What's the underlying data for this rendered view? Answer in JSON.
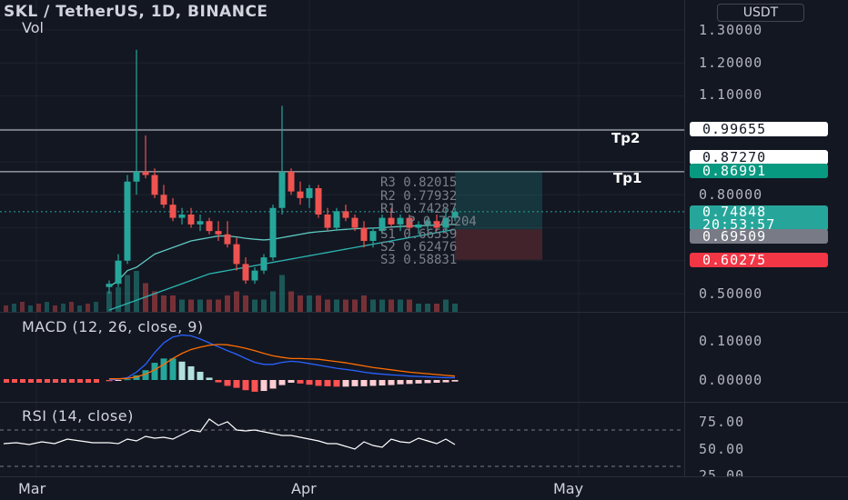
{
  "header": {
    "title": "SKL / TetherUS, 1D, BINANCE",
    "volume_label": "Vol",
    "currency_button": "USDT"
  },
  "price_axis": {
    "ticks": [
      "1.30000",
      "1.20000",
      "1.10000",
      "0.80000",
      "0.50000"
    ],
    "tags": {
      "tp2_line": "0.99655",
      "r_level": "0.87270",
      "tp1_line": "0.86991",
      "last_price": "0.74848",
      "countdown": "20:53:57",
      "mid_level": "0.69509",
      "stop_level": "0.60275"
    }
  },
  "annotations": {
    "tp2": "Tp2",
    "tp1": "Tp1",
    "pivots": [
      "R3 0.82015",
      "R2 0.77932",
      "R1 0.74287",
      "P 0.70204",
      "S1 0.66559",
      "S2 0.62476",
      "S3 0.58831"
    ]
  },
  "macd": {
    "label": "MACD (12, 26, close, 9)",
    "ticks": [
      "0.10000",
      "0.00000"
    ]
  },
  "rsi": {
    "label": "RSI (14, close)",
    "ticks": [
      "75.00",
      "50.00",
      "25.00"
    ]
  },
  "time_axis": {
    "labels": [
      "Mar",
      "Apr",
      "May"
    ]
  },
  "colors": {
    "background": "#131722",
    "up": "#26a69a",
    "down": "#ef5350",
    "macd_line": "#2962ff",
    "signal_line": "#ff6d00",
    "ma_line": "#5ec8c0"
  },
  "chart_data": {
    "type": "candlestick",
    "ohlc": [
      [
        0.52,
        0.54,
        0.5,
        0.53
      ],
      [
        0.53,
        0.62,
        0.52,
        0.6
      ],
      [
        0.6,
        0.86,
        0.59,
        0.84
      ],
      [
        0.84,
        1.24,
        0.8,
        0.87
      ],
      [
        0.87,
        0.98,
        0.85,
        0.86
      ],
      [
        0.86,
        0.88,
        0.79,
        0.8
      ],
      [
        0.8,
        0.83,
        0.76,
        0.77
      ],
      [
        0.77,
        0.79,
        0.72,
        0.73
      ],
      [
        0.73,
        0.76,
        0.71,
        0.74
      ],
      [
        0.74,
        0.76,
        0.7,
        0.71
      ],
      [
        0.71,
        0.74,
        0.69,
        0.72
      ],
      [
        0.72,
        0.73,
        0.68,
        0.69
      ],
      [
        0.69,
        0.72,
        0.66,
        0.68
      ],
      [
        0.68,
        0.72,
        0.64,
        0.65
      ],
      [
        0.65,
        0.67,
        0.57,
        0.59
      ],
      [
        0.59,
        0.61,
        0.53,
        0.54
      ],
      [
        0.54,
        0.58,
        0.53,
        0.57
      ],
      [
        0.57,
        0.62,
        0.56,
        0.61
      ],
      [
        0.61,
        0.77,
        0.6,
        0.76
      ],
      [
        0.76,
        1.07,
        0.74,
        0.87
      ],
      [
        0.87,
        0.88,
        0.8,
        0.81
      ],
      [
        0.81,
        0.84,
        0.77,
        0.79
      ],
      [
        0.79,
        0.83,
        0.76,
        0.82
      ],
      [
        0.82,
        0.83,
        0.73,
        0.74
      ],
      [
        0.74,
        0.76,
        0.69,
        0.7
      ],
      [
        0.7,
        0.76,
        0.69,
        0.75
      ],
      [
        0.75,
        0.77,
        0.72,
        0.73
      ],
      [
        0.73,
        0.74,
        0.69,
        0.7
      ],
      [
        0.7,
        0.72,
        0.64,
        0.66
      ],
      [
        0.66,
        0.7,
        0.64,
        0.69
      ],
      [
        0.69,
        0.74,
        0.68,
        0.73
      ],
      [
        0.73,
        0.76,
        0.7,
        0.71
      ],
      [
        0.71,
        0.74,
        0.69,
        0.73
      ],
      [
        0.73,
        0.74,
        0.69,
        0.7
      ],
      [
        0.7,
        0.72,
        0.68,
        0.71
      ],
      [
        0.71,
        0.73,
        0.69,
        0.72
      ],
      [
        0.72,
        0.74,
        0.69,
        0.7
      ],
      [
        0.7,
        0.76,
        0.69,
        0.73
      ],
      [
        0.73,
        0.76,
        0.72,
        0.748
      ]
    ],
    "ma": [
      0.52,
      0.54,
      0.57,
      0.58,
      0.6,
      0.62,
      0.63,
      0.64,
      0.65,
      0.66,
      0.665,
      0.67,
      0.675,
      0.675,
      0.672,
      0.668,
      0.665,
      0.663,
      0.665,
      0.67,
      0.675,
      0.68,
      0.685,
      0.688,
      0.69,
      0.693,
      0.695,
      0.697,
      0.698,
      0.699,
      0.7,
      0.702,
      0.704,
      0.705,
      0.706,
      0.707,
      0.708,
      0.709,
      0.71
    ],
    "ma2": [
      0.45,
      0.46,
      0.47,
      0.48,
      0.49,
      0.5,
      0.51,
      0.52,
      0.53,
      0.54,
      0.55,
      0.56,
      0.565,
      0.57,
      0.575,
      0.58,
      0.585,
      0.59,
      0.595,
      0.6,
      0.605,
      0.61,
      0.615,
      0.62,
      0.625,
      0.63,
      0.635,
      0.64,
      0.645,
      0.65,
      0.655,
      0.66,
      0.665,
      0.67,
      0.675,
      0.68,
      0.685,
      0.69,
      0.695
    ],
    "volume": [
      0.5,
      0.6,
      0.9,
      1.0,
      0.7,
      0.5,
      0.4,
      0.4,
      0.3,
      0.3,
      0.3,
      0.3,
      0.3,
      0.4,
      0.5,
      0.4,
      0.3,
      0.3,
      0.5,
      0.9,
      0.5,
      0.4,
      0.4,
      0.4,
      0.3,
      0.3,
      0.3,
      0.3,
      0.4,
      0.3,
      0.3,
      0.3,
      0.3,
      0.3,
      0.2,
      0.2,
      0.2,
      0.3,
      0.2
    ],
    "macd_line": [
      0.0,
      0.002,
      0.006,
      0.02,
      0.04,
      0.07,
      0.095,
      0.11,
      0.115,
      0.113,
      0.105,
      0.095,
      0.085,
      0.075,
      0.066,
      0.055,
      0.045,
      0.04,
      0.04,
      0.045,
      0.048,
      0.046,
      0.042,
      0.038,
      0.034,
      0.03,
      0.027,
      0.024,
      0.02,
      0.017,
      0.015,
      0.013,
      0.012,
      0.01,
      0.009,
      0.008,
      0.007,
      0.006,
      0.006
    ],
    "signal_line": [
      0.003,
      0.003,
      0.004,
      0.008,
      0.015,
      0.026,
      0.04,
      0.055,
      0.068,
      0.078,
      0.084,
      0.089,
      0.091,
      0.09,
      0.086,
      0.081,
      0.075,
      0.068,
      0.062,
      0.058,
      0.055,
      0.055,
      0.054,
      0.053,
      0.05,
      0.047,
      0.044,
      0.04,
      0.036,
      0.032,
      0.029,
      0.026,
      0.023,
      0.02,
      0.018,
      0.016,
      0.014,
      0.012,
      0.01
    ],
    "rsi": [
      56,
      55,
      60,
      58,
      63,
      61,
      62,
      60,
      65,
      70,
      68,
      82,
      75,
      79,
      70,
      69,
      70,
      68,
      66,
      64,
      64,
      62,
      60,
      58,
      55,
      55,
      52,
      49,
      57,
      53,
      51,
      60,
      57,
      56,
      61,
      58,
      55,
      60,
      54
    ]
  }
}
